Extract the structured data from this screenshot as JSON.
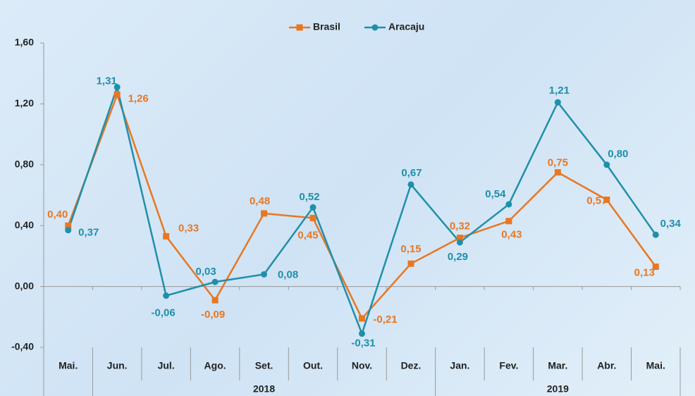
{
  "chart_data": {
    "type": "line",
    "categories": [
      "Mai.",
      "Jun.",
      "Jul.",
      "Ago.",
      "Set.",
      "Out.",
      "Nov.",
      "Dez.",
      "Jan.",
      "Fev.",
      "Mar.",
      "Abr.",
      "Mai."
    ],
    "x_groups": [
      {
        "label": "2018",
        "span": [
          1,
          7
        ]
      },
      {
        "label": "2019",
        "span": [
          8,
          12
        ]
      }
    ],
    "series": [
      {
        "name": "Brasil",
        "color": "#e87722",
        "marker": "square",
        "values": [
          0.4,
          1.26,
          0.33,
          -0.09,
          0.48,
          0.45,
          -0.21,
          0.15,
          0.32,
          0.43,
          0.75,
          0.57,
          0.13
        ],
        "value_labels": [
          "0,40",
          "1,26",
          "0,33",
          "-0,09",
          "0,48",
          "0,45",
          "-0,21",
          "0,15",
          "0,32",
          "0,43",
          "0,75",
          "0,57",
          "0,13"
        ]
      },
      {
        "name": "Aracaju",
        "color": "#1f8faa",
        "marker": "circle",
        "values": [
          0.37,
          1.31,
          -0.06,
          0.03,
          0.08,
          0.52,
          -0.31,
          0.67,
          0.29,
          0.54,
          1.21,
          0.8,
          0.34
        ],
        "value_labels": [
          "0,37",
          "1,31",
          "-0,06",
          "0,03",
          "0,08",
          "0,52",
          "-0,31",
          "0,67",
          "0,29",
          "0,54",
          "1,21",
          "0,80",
          "0,34"
        ]
      }
    ],
    "ylim": [
      -0.4,
      1.6
    ],
    "yticks": [
      {
        "value": -0.4,
        "label": "-0,40"
      },
      {
        "value": 0,
        "label": "0,00"
      },
      {
        "value": 0.4,
        "label": "0,40"
      },
      {
        "value": 0.8,
        "label": "0,80"
      },
      {
        "value": 1.2,
        "label": "1,20"
      },
      {
        "value": 1.6,
        "label": "1,60"
      }
    ],
    "legend": "top"
  }
}
